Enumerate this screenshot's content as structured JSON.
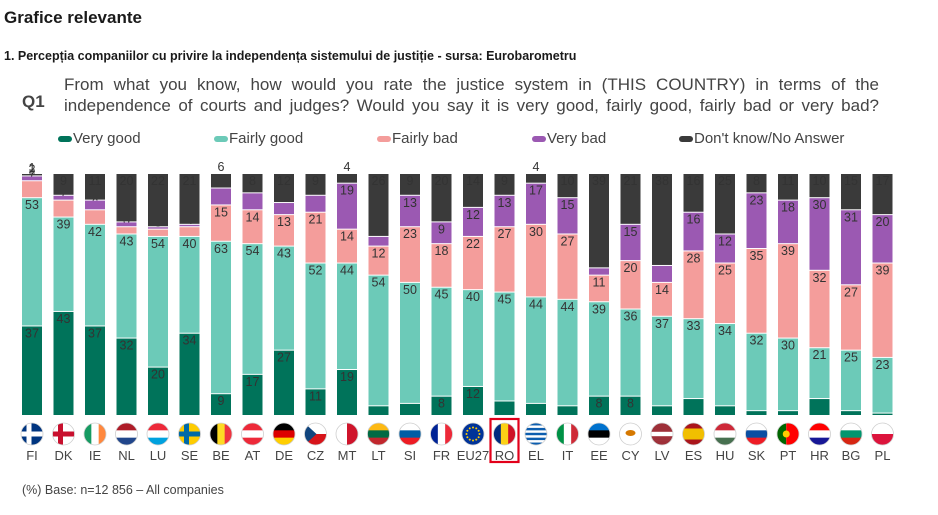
{
  "header": {
    "page_title": "Grafice relevante",
    "subtitle": "1. Percepția companiilor cu privire la independența sistemului de justiție - sursa: Eurobarometru"
  },
  "question": {
    "label": "Q1",
    "text": "From what you know, how would you rate the justice system in (THIS COUNTRY) in terms of the independence of courts and judges? Would you say it is very good, fairly good, fairly bad or very bad?"
  },
  "footer": {
    "base": "(%) Base: n=12 856 – All companies"
  },
  "colors": {
    "very_good": "#00735a",
    "fairly_good": "#6ccab8",
    "fairly_bad": "#f49d9b",
    "very_bad": "#9b59b2",
    "dont_know": "#3a3a3a",
    "highlight": "#e2001a"
  },
  "chart_data": {
    "type": "bar",
    "stacked": true,
    "ylim": [
      0,
      100
    ],
    "categories": [
      "FI",
      "DK",
      "IE",
      "NL",
      "LU",
      "SE",
      "BE",
      "AT",
      "DE",
      "CZ",
      "MT",
      "LT",
      "SI",
      "FR",
      "EU27",
      "RO",
      "EL",
      "IT",
      "EE",
      "CY",
      "LV",
      "ES",
      "HU",
      "SK",
      "PT",
      "HR",
      "BG",
      "PL"
    ],
    "highlighted_category": "RO",
    "series": [
      {
        "name": "Very good",
        "key": "very_good",
        "values": [
          37,
          43,
          37,
          32,
          20,
          34,
          9,
          17,
          27,
          11,
          19,
          4,
          5,
          8,
          12,
          6,
          5,
          4,
          8,
          8,
          4,
          7,
          4,
          2,
          2,
          7,
          2,
          1
        ]
      },
      {
        "name": "Fairly good",
        "key": "fairly_good",
        "values": [
          53,
          39,
          42,
          43,
          54,
          40,
          63,
          54,
          43,
          52,
          44,
          54,
          50,
          45,
          40,
          45,
          44,
          44,
          39,
          36,
          37,
          33,
          34,
          32,
          30,
          21,
          25,
          23
        ]
      },
      {
        "name": "Fairly bad",
        "key": "fairly_bad",
        "values": [
          7,
          7,
          6,
          3,
          3,
          4,
          15,
          14,
          13,
          21,
          14,
          12,
          23,
          18,
          22,
          27,
          30,
          27,
          11,
          20,
          14,
          28,
          25,
          35,
          39,
          32,
          27,
          39
        ]
      },
      {
        "name": "Very bad",
        "key": "very_bad",
        "values": [
          2,
          2,
          4,
          2,
          1,
          1,
          7,
          7,
          5,
          7,
          19,
          4,
          13,
          9,
          12,
          13,
          17,
          15,
          3,
          15,
          7,
          16,
          12,
          23,
          18,
          30,
          31,
          20
        ]
      },
      {
        "name": "Don't know/No Answer",
        "key": "dont_know",
        "values": [
          1,
          9,
          11,
          20,
          22,
          21,
          6,
          8,
          12,
          9,
          4,
          26,
          9,
          20,
          14,
          9,
          4,
          10,
          39,
          21,
          38,
          16,
          25,
          8,
          11,
          10,
          15,
          17
        ]
      }
    ]
  }
}
